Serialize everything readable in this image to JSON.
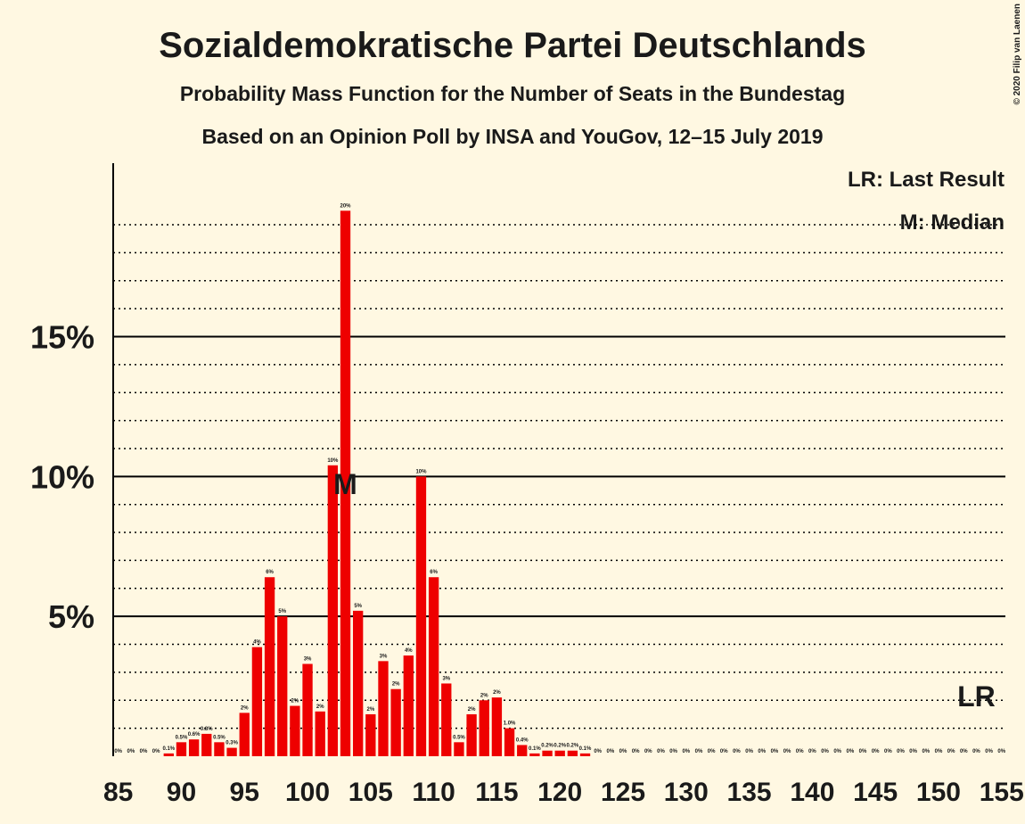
{
  "chart_data": {
    "type": "bar",
    "title": "Sozialdemokratische Partei Deutschlands",
    "subtitle": "Probability Mass Function for the Number of Seats in the Bundestag",
    "subtitle2": "Based on an Opinion Poll by INSA and YouGov, 12–15 July 2019",
    "copyright": "© 2020 Filip van Laenen",
    "legend": [
      "LR: Last Result",
      "M: Median"
    ],
    "x": [
      85,
      86,
      87,
      88,
      89,
      90,
      91,
      92,
      93,
      94,
      95,
      96,
      97,
      98,
      99,
      100,
      101,
      102,
      103,
      104,
      105,
      106,
      107,
      108,
      109,
      110,
      111,
      112,
      113,
      114,
      115,
      116,
      117,
      118,
      119,
      120,
      121,
      122,
      123,
      124,
      125,
      126,
      127,
      128,
      129,
      130,
      131,
      132,
      133,
      134,
      135,
      136,
      137,
      138,
      139,
      140,
      141,
      142,
      143,
      144,
      145,
      146,
      147,
      148,
      149,
      150,
      151,
      152,
      153,
      154,
      155
    ],
    "values": [
      0,
      0,
      0,
      0,
      0.1,
      0.5,
      0.6,
      0.8,
      0.5,
      0.3,
      1.55,
      3.9,
      6.4,
      5.0,
      1.8,
      3.3,
      1.6,
      10.4,
      19.5,
      5.2,
      1.5,
      3.4,
      2.4,
      3.6,
      10.0,
      6.4,
      2.6,
      0.5,
      1.5,
      2.0,
      2.1,
      1.0,
      0.4,
      0.1,
      0.2,
      0.2,
      0.2,
      0.1,
      0,
      0,
      0,
      0,
      0,
      0,
      0,
      0,
      0,
      0,
      0,
      0,
      0,
      0,
      0,
      0,
      0,
      0,
      0,
      0,
      0,
      0,
      0,
      0,
      0,
      0,
      0,
      0,
      0,
      0,
      0,
      0,
      0
    ],
    "value_labels": [
      "0%",
      "0%",
      "0%",
      "0%",
      "0.1%",
      "0.5%",
      "0.6%",
      "0.8%",
      "0.5%",
      "0.3%",
      "2%",
      "4%",
      "6%",
      "5%",
      "2%",
      "3%",
      "2%",
      "10%",
      "20%",
      "5%",
      "2%",
      "3%",
      "2%",
      "4%",
      "10%",
      "6%",
      "3%",
      "0.5%",
      "2%",
      "2%",
      "2%",
      "1.0%",
      "0.4%",
      "0.1%",
      "0.2%",
      "0.2%",
      "0.2%",
      "0.1%",
      "0%",
      "0%",
      "0%",
      "0%",
      "0%",
      "0%",
      "0%",
      "0%",
      "0%",
      "0%",
      "0%",
      "0%",
      "0%",
      "0%",
      "0%",
      "0%",
      "0%",
      "0%",
      "0%",
      "0%",
      "0%",
      "0%",
      "0%",
      "0%",
      "0%",
      "0%",
      "0%",
      "0%",
      "0%",
      "0%",
      "0%",
      "0%",
      "0%"
    ],
    "color": "#ee0000",
    "xlim": [
      84.6,
      155.3
    ],
    "xticks": [
      85,
      90,
      95,
      100,
      105,
      110,
      115,
      120,
      125,
      130,
      135,
      140,
      145,
      150,
      155
    ],
    "ylim": [
      0,
      21.2
    ],
    "yticks": [
      {
        "value": 5,
        "label": "5%"
      },
      {
        "value": 10,
        "label": "10%"
      },
      {
        "value": 15,
        "label": "15%"
      }
    ],
    "yminor": [
      1,
      2,
      3,
      4,
      6,
      7,
      8,
      9,
      11,
      12,
      13,
      14,
      16,
      17,
      18,
      19
    ],
    "markers": [
      {
        "label": "M",
        "x": 103
      },
      {
        "label": "LR",
        "x": 153
      }
    ]
  }
}
